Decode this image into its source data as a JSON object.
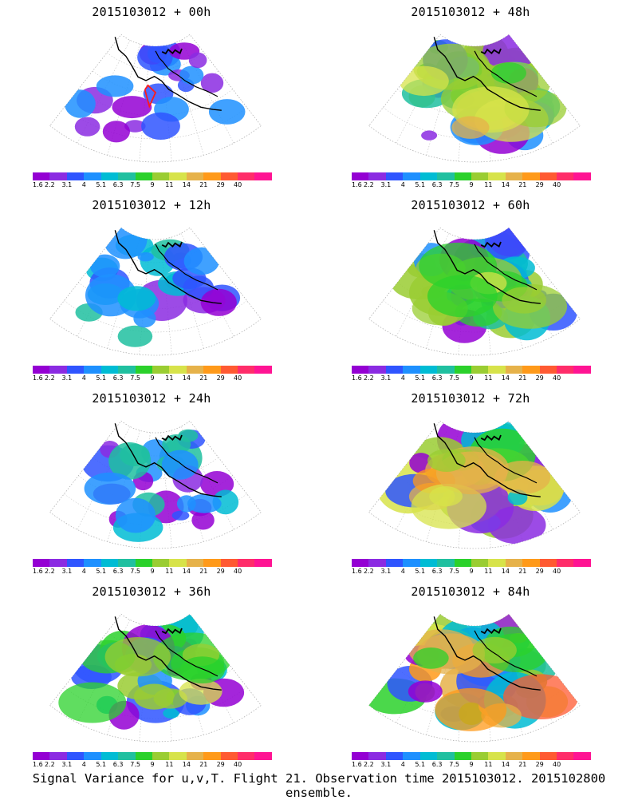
{
  "figure": {
    "footer": "Signal Variance for u,v,T. Flight 21. Observation time 2015103012. 2015102800 ensemble."
  },
  "colorbar": {
    "colors": [
      "#9400d3",
      "#8b2be2",
      "#2f55ff",
      "#1e90ff",
      "#00bcd4",
      "#20c0a0",
      "#2bd12b",
      "#9acd32",
      "#d7e34a",
      "#e6b24a",
      "#ff9a1a",
      "#ff5a32",
      "#ff2d6a",
      "#ff1493"
    ],
    "labels": [
      "1.6",
      "2.2",
      "3.1",
      "4",
      "5.1",
      "6.3",
      "7.5",
      "9",
      "11",
      "14",
      "21",
      "29",
      "40"
    ]
  },
  "panels": [
    {
      "title": "2015103012 + 00h",
      "lead_hours": 0,
      "intensity": 0.2,
      "has_flight_track": true
    },
    {
      "title": "2015103012 + 48h",
      "lead_hours": 48,
      "intensity": 0.62,
      "has_flight_track": false
    },
    {
      "title": "2015103012 + 12h",
      "lead_hours": 12,
      "intensity": 0.35,
      "has_flight_track": false
    },
    {
      "title": "2015103012 + 60h",
      "lead_hours": 60,
      "intensity": 0.7,
      "has_flight_track": false
    },
    {
      "title": "2015103012 + 24h",
      "lead_hours": 24,
      "intensity": 0.45,
      "has_flight_track": false
    },
    {
      "title": "2015103012 + 72h",
      "lead_hours": 72,
      "intensity": 0.78,
      "has_flight_track": false
    },
    {
      "title": "2015103012 + 36h",
      "lead_hours": 36,
      "intensity": 0.52,
      "has_flight_track": false
    },
    {
      "title": "2015103012 + 84h",
      "lead_hours": 84,
      "intensity": 0.85,
      "has_flight_track": false
    }
  ]
}
